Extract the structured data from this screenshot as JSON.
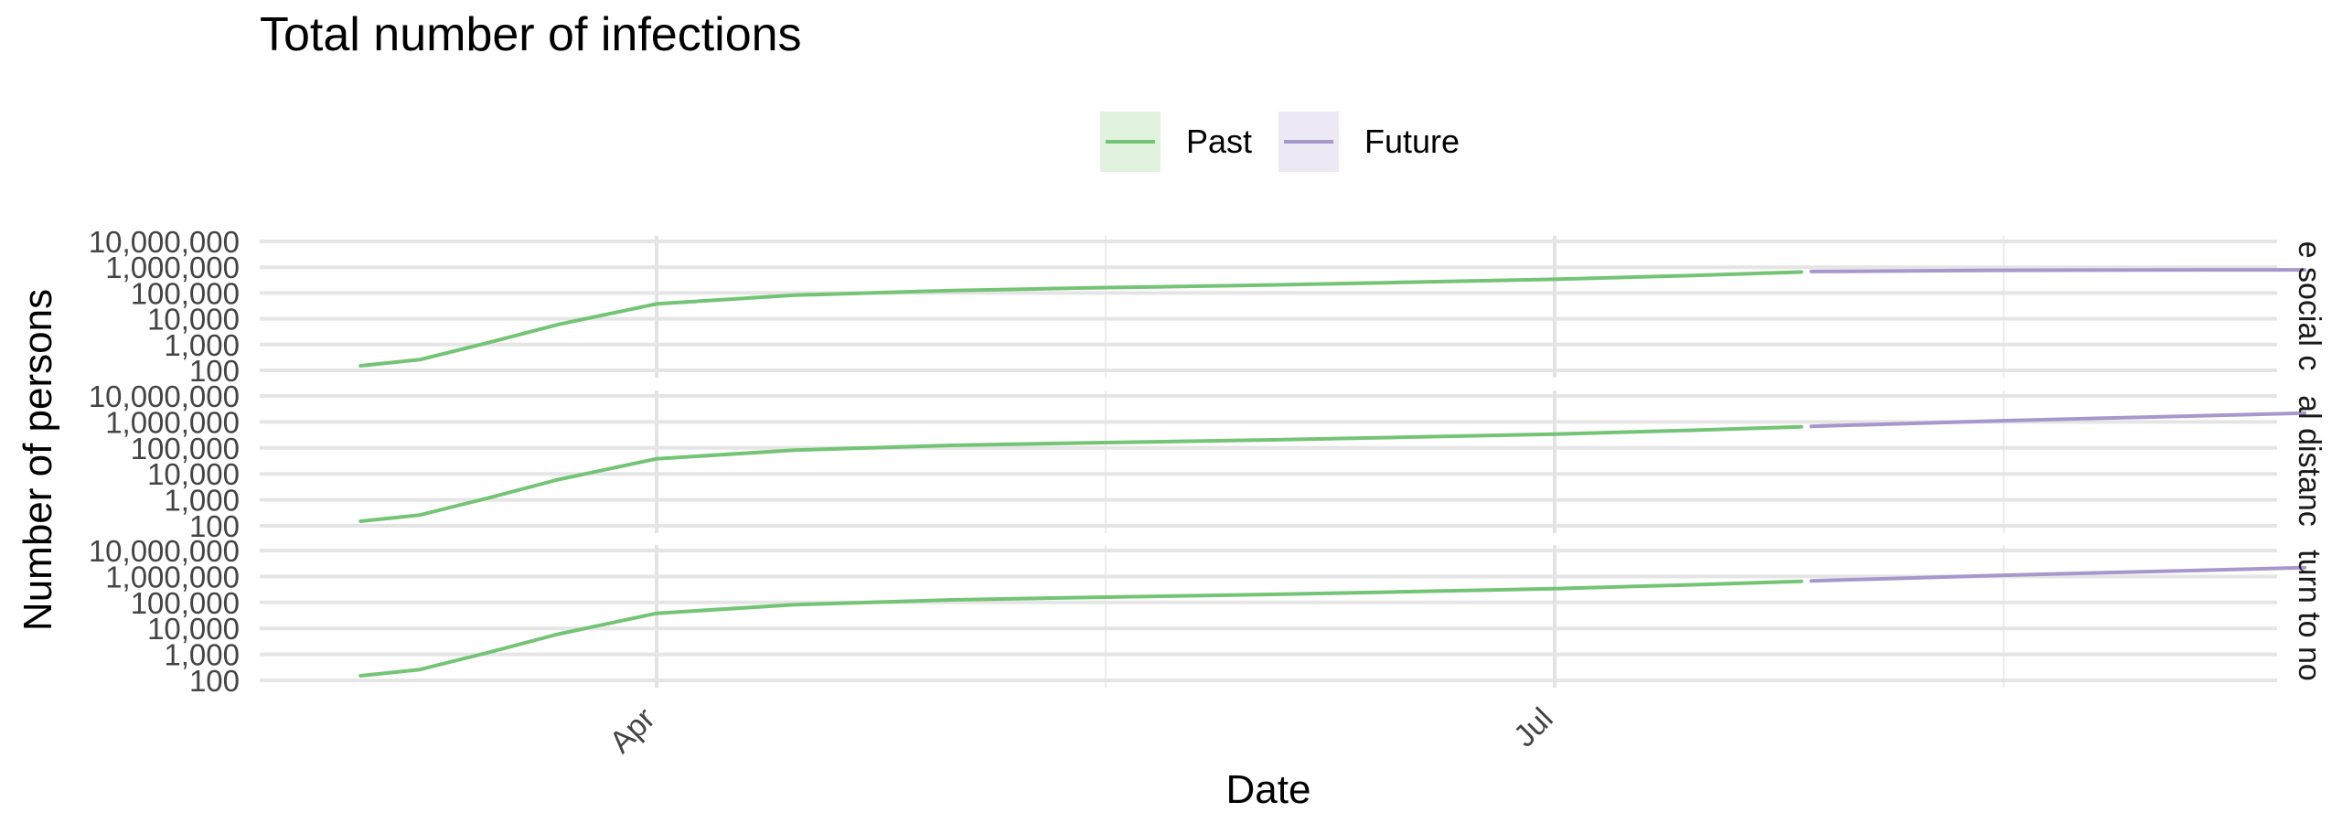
{
  "chart_data": {
    "type": "line",
    "title": "Total number of infections",
    "xlabel": "Date",
    "ylabel": "Number of persons",
    "x_ticks": [
      "Apr",
      "Jul"
    ],
    "y_scale": "log10",
    "y_ticks": [
      "100",
      "1,000",
      "10,000",
      "100,000",
      "1,000,000",
      "10,000,000"
    ],
    "ylim": [
      100,
      10000000
    ],
    "grid": true,
    "legend": {
      "position": "top",
      "entries": [
        {
          "name": "Past",
          "color": "#74c476"
        },
        {
          "name": "Future",
          "color": "#a897cc"
        }
      ]
    },
    "panels": [
      {
        "strip_label": "e social c",
        "series": [
          {
            "name": "Past",
            "x": [
              "2020-03-02",
              "2020-03-08",
              "2020-03-15",
              "2020-03-22",
              "2020-04-01",
              "2020-04-15",
              "2020-05-01",
              "2020-05-15",
              "2020-06-01",
              "2020-06-15",
              "2020-07-01",
              "2020-07-15",
              "2020-07-26"
            ],
            "values": [
              150,
              260,
              1200,
              6000,
              38000,
              82000,
              125000,
              158000,
              200000,
              255000,
              340000,
              480000,
              650000
            ]
          },
          {
            "name": "Future",
            "x": [
              "2020-07-27",
              "2020-08-15",
              "2020-09-01",
              "2020-09-15"
            ],
            "values": [
              680000,
              760000,
              780000,
              790000
            ]
          }
        ]
      },
      {
        "strip_label": "al distanc",
        "series": [
          {
            "name": "Past",
            "x": [
              "2020-03-02",
              "2020-03-08",
              "2020-03-15",
              "2020-03-22",
              "2020-04-01",
              "2020-04-15",
              "2020-05-01",
              "2020-05-15",
              "2020-06-01",
              "2020-06-15",
              "2020-07-01",
              "2020-07-15",
              "2020-07-26"
            ],
            "values": [
              150,
              260,
              1200,
              6000,
              38000,
              82000,
              125000,
              158000,
              200000,
              255000,
              340000,
              480000,
              650000
            ]
          },
          {
            "name": "Future",
            "x": [
              "2020-07-27",
              "2020-08-15",
              "2020-09-01",
              "2020-09-15"
            ],
            "values": [
              680000,
              1100000,
              1600000,
              2200000
            ]
          }
        ]
      },
      {
        "strip_label": "turn to no",
        "series": [
          {
            "name": "Past",
            "x": [
              "2020-03-02",
              "2020-03-08",
              "2020-03-15",
              "2020-03-22",
              "2020-04-01",
              "2020-04-15",
              "2020-05-01",
              "2020-05-15",
              "2020-06-01",
              "2020-06-15",
              "2020-07-01",
              "2020-07-15",
              "2020-07-26"
            ],
            "values": [
              150,
              260,
              1200,
              6000,
              38000,
              82000,
              125000,
              158000,
              200000,
              255000,
              340000,
              480000,
              650000
            ]
          },
          {
            "name": "Future",
            "x": [
              "2020-07-27",
              "2020-08-15",
              "2020-09-01",
              "2020-09-15"
            ],
            "values": [
              680000,
              1100000,
              1600000,
              2200000
            ]
          }
        ]
      }
    ]
  }
}
